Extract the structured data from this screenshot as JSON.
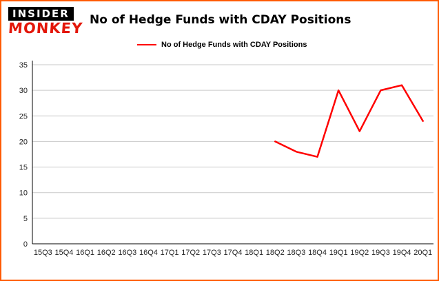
{
  "page": {
    "border_color": "#ff5a00",
    "background": "#ffffff"
  },
  "logo": {
    "line1": "INSIDER",
    "line2": "MONKEY"
  },
  "header": {
    "title": "No of Hedge Funds with CDAY Positions"
  },
  "legend": {
    "label": "No of Hedge Funds with CDAY Positions",
    "line_color": "#ff0000"
  },
  "chart_data": {
    "type": "line",
    "title": "No of Hedge Funds with CDAY Positions",
    "categories": [
      "15Q3",
      "15Q4",
      "16Q1",
      "16Q2",
      "16Q3",
      "16Q4",
      "17Q1",
      "17Q2",
      "17Q3",
      "17Q4",
      "18Q1",
      "18Q2",
      "18Q3",
      "18Q4",
      "19Q1",
      "19Q2",
      "19Q3",
      "19Q4",
      "20Q1"
    ],
    "series": [
      {
        "name": "No of Hedge Funds with CDAY Positions",
        "color": "#ff0000",
        "values": [
          null,
          null,
          null,
          null,
          null,
          null,
          null,
          null,
          null,
          null,
          null,
          20,
          18,
          17,
          30,
          22,
          30,
          31,
          24
        ]
      }
    ],
    "xlabel": "",
    "ylabel": "",
    "ylim": [
      0,
      35
    ],
    "yticks": [
      0,
      5,
      10,
      15,
      20,
      25,
      30,
      35
    ],
    "grid": "horizontal",
    "legend_position": "top-left"
  }
}
